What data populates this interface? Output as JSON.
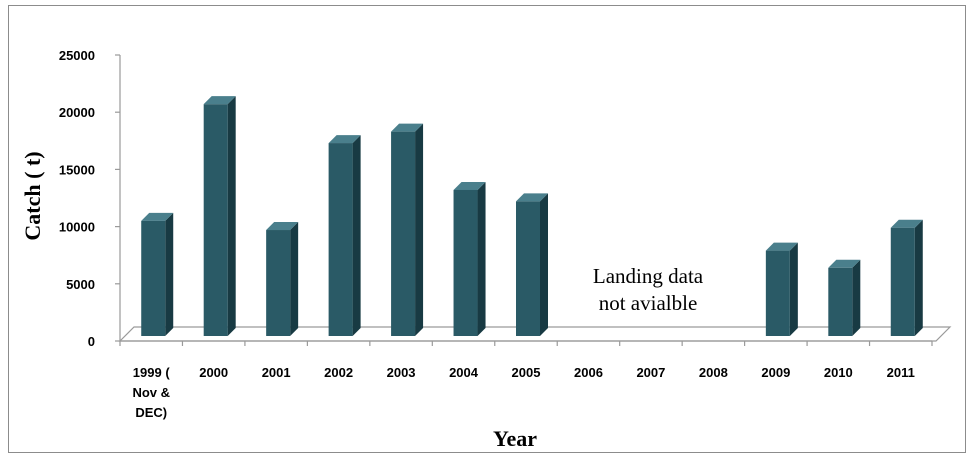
{
  "chart_data": {
    "type": "bar",
    "xlabel": "Year",
    "ylabel": "Catch ( t)",
    "ylim": [
      0,
      25000
    ],
    "y_ticks": [
      "0",
      "5000",
      "10000",
      "15000",
      "20000",
      "25000"
    ],
    "categories": [
      [
        "1999 (",
        "Nov &",
        "DEC)"
      ],
      [
        "2000"
      ],
      [
        "2001"
      ],
      [
        "2002"
      ],
      [
        "2003"
      ],
      [
        "2004"
      ],
      [
        "2005"
      ],
      [
        "2006"
      ],
      [
        "2007"
      ],
      [
        "2008"
      ],
      [
        "2009"
      ],
      [
        "2010"
      ],
      [
        "2011"
      ]
    ],
    "values": [
      11200,
      21400,
      10400,
      18000,
      19000,
      13900,
      12900,
      null,
      null,
      null,
      8600,
      7100,
      10600
    ],
    "annotation": [
      "Landing data",
      "not avialble"
    ],
    "grid": false,
    "legend": "none",
    "three_d": true,
    "colors": {
      "bar_front": "#2a5a66",
      "bar_side": "#183a43",
      "bar_top": "#4a7f8c"
    }
  }
}
